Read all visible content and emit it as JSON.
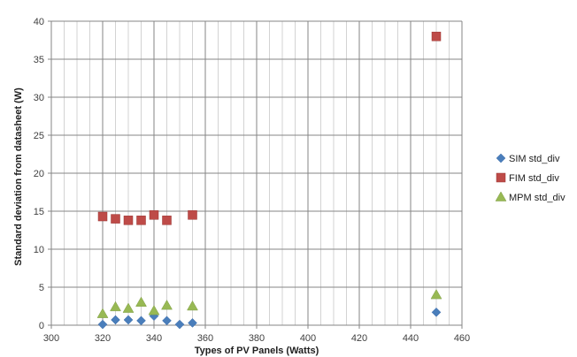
{
  "chart_data": {
    "type": "scatter",
    "title": "",
    "xlabel": "Types of PV Panels (Watts)",
    "ylabel": "Standard deviation from datasheet (W)",
    "xlim": [
      300,
      460
    ],
    "ylim": [
      0,
      40
    ],
    "x_major_ticks": [
      300,
      320,
      340,
      360,
      380,
      400,
      420,
      440,
      460
    ],
    "x_minor_step": 5,
    "y_ticks": [
      0,
      5,
      10,
      15,
      20,
      25,
      30,
      35,
      40
    ],
    "grid": true,
    "legend_position": "right",
    "series": [
      {
        "name": "SIM std_div",
        "marker": "diamond",
        "color": "#4a7ebb",
        "points": [
          [
            320,
            0.1
          ],
          [
            325,
            0.7
          ],
          [
            330,
            0.7
          ],
          [
            335,
            0.6
          ],
          [
            340,
            1.2
          ],
          [
            345,
            0.6
          ],
          [
            350,
            0.1
          ],
          [
            355,
            0.3
          ],
          [
            450,
            1.7
          ]
        ]
      },
      {
        "name": "FIM std_div",
        "marker": "square",
        "color": "#be4b48",
        "points": [
          [
            320,
            14.3
          ],
          [
            325,
            14.0
          ],
          [
            330,
            13.8
          ],
          [
            335,
            13.8
          ],
          [
            340,
            14.5
          ],
          [
            345,
            13.8
          ],
          [
            355,
            14.5
          ],
          [
            450,
            38.0
          ]
        ]
      },
      {
        "name": "MPM std_div",
        "marker": "triangle",
        "color": "#98b954",
        "points": [
          [
            320,
            1.5
          ],
          [
            325,
            2.4
          ],
          [
            330,
            2.2
          ],
          [
            335,
            3.0
          ],
          [
            340,
            1.9
          ],
          [
            345,
            2.6
          ],
          [
            355,
            2.5
          ],
          [
            450,
            4.0
          ]
        ]
      }
    ]
  }
}
